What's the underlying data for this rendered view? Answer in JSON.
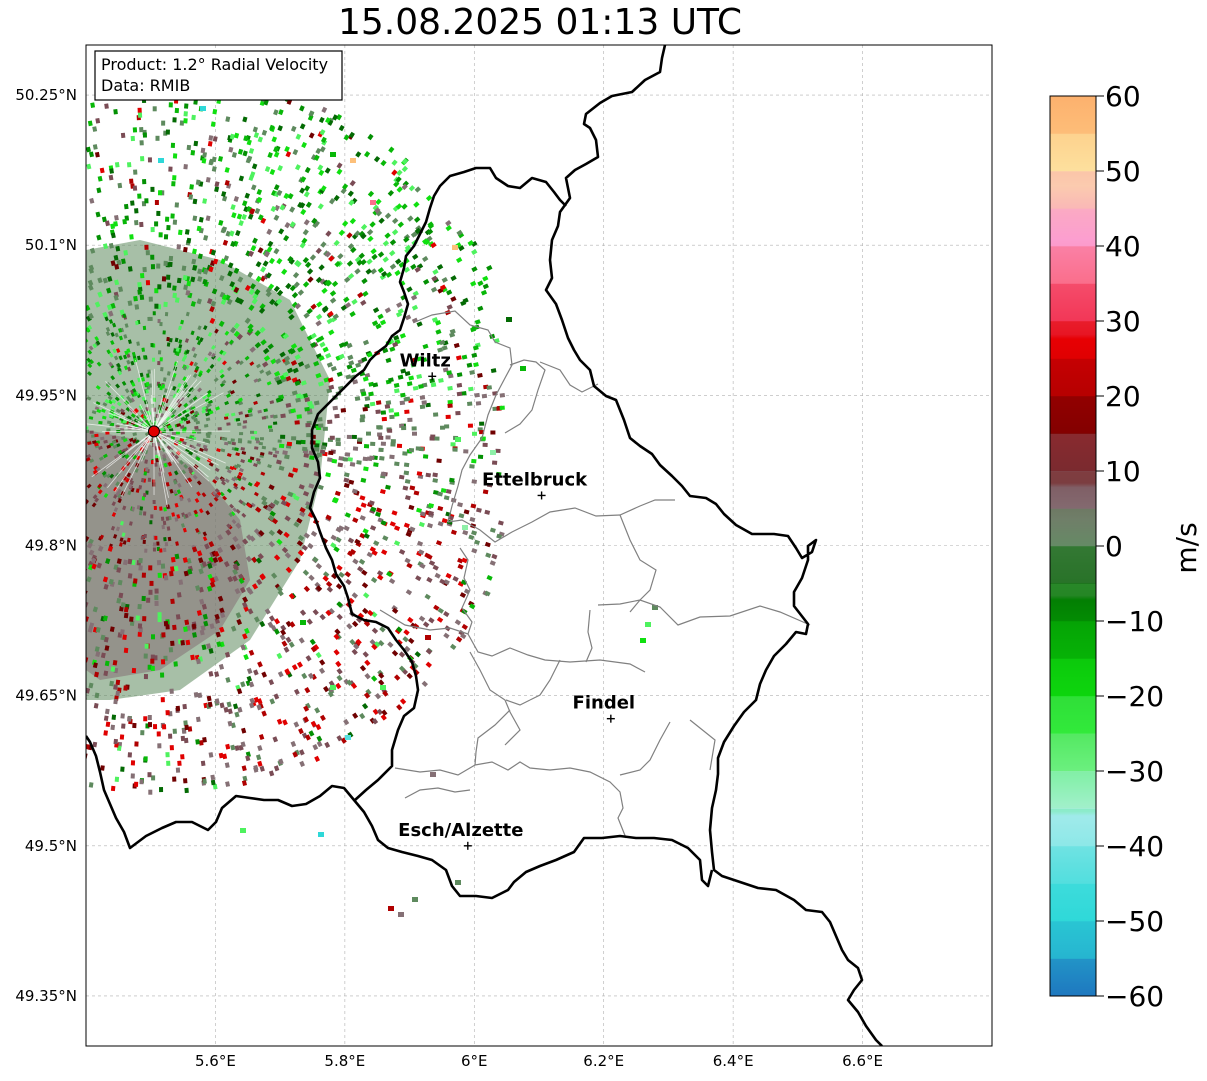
{
  "title": "15.08.2025 01:13 UTC",
  "info_box": {
    "line1": "Product: 1.2° Radial Velocity",
    "line2": "Data: RMIB"
  },
  "map": {
    "lon_range": [
      5.4,
      6.8
    ],
    "lat_range": [
      49.3,
      50.3
    ],
    "lon_ticks": [
      {
        "value": 5.6,
        "label": "5.6°E"
      },
      {
        "value": 5.8,
        "label": "5.8°E"
      },
      {
        "value": 6.0,
        "label": "6°E"
      },
      {
        "value": 6.2,
        "label": "6.2°E"
      },
      {
        "value": 6.4,
        "label": "6.4°E"
      },
      {
        "value": 6.6,
        "label": "6.6°E"
      }
    ],
    "lat_ticks": [
      {
        "value": 50.25,
        "label": "50.25°N"
      },
      {
        "value": 50.1,
        "label": "50.1°N"
      },
      {
        "value": 49.95,
        "label": "49.95°N"
      },
      {
        "value": 49.8,
        "label": "49.8°N"
      },
      {
        "value": 49.65,
        "label": "49.65°N"
      },
      {
        "value": 49.5,
        "label": "49.5°N"
      },
      {
        "value": 49.35,
        "label": "49.35°N"
      }
    ],
    "radar_site": {
      "lon": 5.505,
      "lat": 49.914
    },
    "cities": [
      {
        "name": "Wiltz",
        "lon": 5.935,
        "lat": 49.969
      },
      {
        "name": "Ettelbruck",
        "lon": 6.104,
        "lat": 49.85
      },
      {
        "name": "Findel",
        "lon": 6.211,
        "lat": 49.627
      },
      {
        "name": "Esch/Alzette",
        "lon": 5.99,
        "lat": 49.5
      }
    ]
  },
  "colorbar": {
    "unit_label": "m/s",
    "min": -60,
    "max": 60,
    "ticks": [
      {
        "value": 60,
        "label": "60"
      },
      {
        "value": 50,
        "label": "50"
      },
      {
        "value": 40,
        "label": "40"
      },
      {
        "value": 30,
        "label": "30"
      },
      {
        "value": 20,
        "label": "20"
      },
      {
        "value": 10,
        "label": "10"
      },
      {
        "value": 0,
        "label": "0"
      },
      {
        "value": -10,
        "label": "−10"
      },
      {
        "value": -20,
        "label": "−20"
      },
      {
        "value": -30,
        "label": "−30"
      },
      {
        "value": -40,
        "label": "−40"
      },
      {
        "value": -50,
        "label": "−50"
      },
      {
        "value": -60,
        "label": "−60"
      }
    ],
    "colors": {
      "-60": "#1f78c0",
      "-55": "#26b4d0",
      "-50": "#2ed8d8",
      "-45": "#55dfdf",
      "-40": "#8ce8e8",
      "-35": "#b8eeee",
      "-30": "#8ef0a8",
      "-25": "#4ef25e",
      "-20": "#10e010",
      "-15": "#08b808",
      "-10": "#039003",
      "-5": "#036a03",
      "0": "#5e8a5e",
      "5": "#857075",
      "10": "#7a4c55",
      "15": "#700000",
      "20": "#b00000",
      "25": "#e00000",
      "30": "#f03050",
      "35": "#fa6e8a",
      "40": "#fc9ed0",
      "45": "#fab4b8",
      "50": "#fde6a4",
      "55": "#fdc07a",
      "60": "#fba060"
    }
  }
}
